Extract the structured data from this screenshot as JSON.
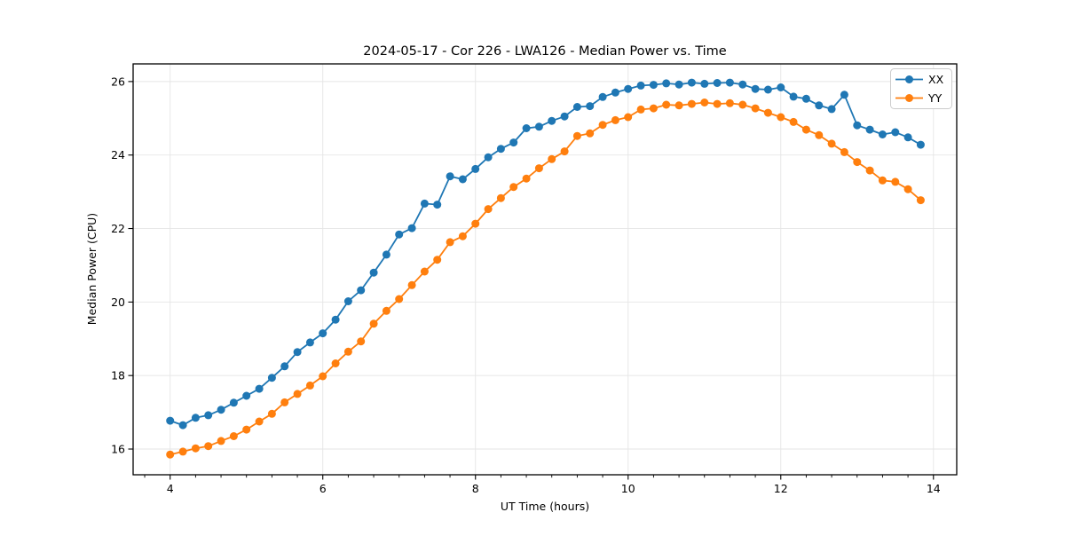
{
  "chart_data": {
    "type": "line",
    "title": "2024-05-17 - Cor 226 - LWA126 - Median Power vs. Time",
    "xlabel": "UT Time (hours)",
    "ylabel": "Median Power (CPU)",
    "xlim": [
      3.515,
      14.305
    ],
    "ylim": [
      15.3,
      26.48
    ],
    "xticks": [
      4,
      6,
      8,
      10,
      12,
      14
    ],
    "yticks": [
      16,
      18,
      20,
      22,
      24,
      26
    ],
    "x_minor_tick_step": 0.33333,
    "grid": true,
    "grid_color": "#e5e5e5",
    "spine_color": "#000000",
    "legend_position": "upper right",
    "x": [
      4.0,
      4.167,
      4.333,
      4.5,
      4.667,
      4.833,
      5.0,
      5.167,
      5.333,
      5.5,
      5.667,
      5.833,
      6.0,
      6.167,
      6.333,
      6.5,
      6.667,
      6.833,
      7.0,
      7.167,
      7.333,
      7.5,
      7.667,
      7.833,
      8.0,
      8.167,
      8.333,
      8.5,
      8.667,
      8.833,
      9.0,
      9.167,
      9.333,
      9.5,
      9.667,
      9.833,
      10.0,
      10.167,
      10.333,
      10.5,
      10.667,
      10.833,
      11.0,
      11.167,
      11.333,
      11.5,
      11.667,
      11.833,
      12.0,
      12.167,
      12.333,
      12.5,
      12.667,
      12.833,
      13.0,
      13.167,
      13.333,
      13.5,
      13.667,
      13.833
    ],
    "series": [
      {
        "name": "XX",
        "color": "#1f77b4",
        "values": [
          16.77,
          16.65,
          16.85,
          16.92,
          17.07,
          17.26,
          17.45,
          17.64,
          17.94,
          18.25,
          18.64,
          18.9,
          19.15,
          19.52,
          20.02,
          20.32,
          20.8,
          21.29,
          21.84,
          22.01,
          22.68,
          22.65,
          23.42,
          23.34,
          23.62,
          23.94,
          24.17,
          24.34,
          24.73,
          24.77,
          24.93,
          25.05,
          25.31,
          25.33,
          25.58,
          25.7,
          25.8,
          25.89,
          25.91,
          25.95,
          25.92,
          25.97,
          25.94,
          25.96,
          25.97,
          25.92,
          25.8,
          25.78,
          25.84,
          25.59,
          25.53,
          25.35,
          25.25,
          25.64,
          24.81,
          24.69,
          24.56,
          24.62,
          24.48,
          24.28
        ]
      },
      {
        "name": "YY",
        "color": "#ff7f0e",
        "values": [
          15.85,
          15.93,
          16.02,
          16.08,
          16.22,
          16.35,
          16.53,
          16.75,
          16.96,
          17.27,
          17.5,
          17.73,
          17.98,
          18.33,
          18.65,
          18.93,
          19.41,
          19.76,
          20.08,
          20.46,
          20.83,
          21.15,
          21.63,
          21.79,
          22.13,
          22.53,
          22.83,
          23.13,
          23.36,
          23.64,
          23.89,
          24.1,
          24.52,
          24.59,
          24.82,
          24.95,
          25.03,
          25.24,
          25.27,
          25.37,
          25.35,
          25.39,
          25.43,
          25.39,
          25.41,
          25.37,
          25.27,
          25.15,
          25.03,
          24.9,
          24.69,
          24.54,
          24.31,
          24.08,
          23.81,
          23.58,
          23.31,
          23.27,
          23.07,
          22.77
        ]
      }
    ]
  }
}
